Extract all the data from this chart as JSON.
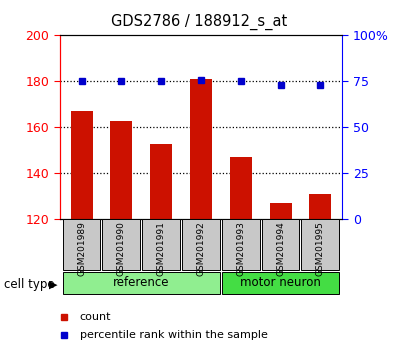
{
  "title": "GDS2786 / 188912_s_at",
  "samples": [
    "GSM201989",
    "GSM201990",
    "GSM201991",
    "GSM201992",
    "GSM201993",
    "GSM201994",
    "GSM201995"
  ],
  "bar_values": [
    167,
    163,
    153,
    181,
    147,
    127,
    131
  ],
  "percentile_values": [
    75,
    75,
    75,
    76,
    75,
    73,
    73
  ],
  "groups": [
    {
      "label": "reference",
      "indices": [
        0,
        1,
        2,
        3
      ],
      "color": "#90EE90"
    },
    {
      "label": "motor neuron",
      "indices": [
        4,
        5,
        6
      ],
      "color": "#44DD44"
    }
  ],
  "bar_color": "#CC1100",
  "percentile_color": "#0000CC",
  "bar_bottom": 120,
  "ylim_left": [
    120,
    200
  ],
  "ylim_right": [
    0,
    100
  ],
  "yticks_left": [
    120,
    140,
    160,
    180,
    200
  ],
  "yticks_right": [
    0,
    25,
    50,
    75,
    100
  ],
  "ytick_labels_right": [
    "0",
    "25",
    "50",
    "75",
    "100%"
  ],
  "grid_values": [
    140,
    160,
    180
  ],
  "bg_color": "#C8C8C8",
  "legend_count_label": "count",
  "legend_pct_label": "percentile rank within the sample",
  "cell_type_label": "cell type"
}
